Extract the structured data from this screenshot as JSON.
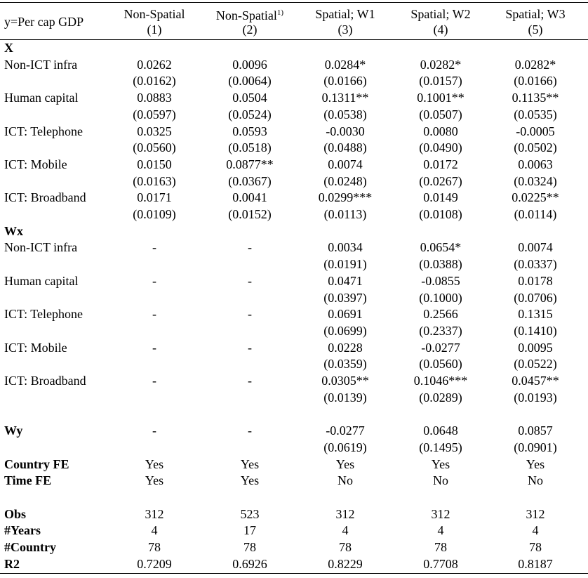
{
  "header": {
    "stub": "y=Per cap GDP",
    "columns": [
      {
        "title": "Non-Spatial",
        "number": "(1)"
      },
      {
        "title": "Non-Spatial",
        "note": "1)",
        "number": "(2)"
      },
      {
        "title": "Spatial; W1",
        "number": "(3)"
      },
      {
        "title": "Spatial; W2",
        "number": "(4)"
      },
      {
        "title": "Spatial; W3",
        "number": "(5)"
      }
    ]
  },
  "sections": [
    {
      "title": "X",
      "rows": [
        {
          "label": "Non-ICT infra",
          "values": [
            "0.0262",
            "0.0096",
            "0.0284*",
            "0.0282*",
            "0.0282*"
          ],
          "se": [
            "(0.0162)",
            "(0.0064)",
            "(0.0166)",
            "(0.0157)",
            "(0.0166)"
          ]
        },
        {
          "label": "Human capital",
          "values": [
            "0.0883",
            "0.0504",
            "0.1311**",
            "0.1001**",
            "0.1135**"
          ],
          "se": [
            "(0.0597)",
            "(0.0524)",
            "(0.0538)",
            "(0.0507)",
            "(0.0535)"
          ]
        },
        {
          "label": "ICT: Telephone",
          "values": [
            "0.0325",
            "0.0593",
            "-0.0030",
            "0.0080",
            "-0.0005"
          ],
          "se": [
            "(0.0560)",
            "(0.0518)",
            "(0.0488)",
            "(0.0490)",
            "(0.0502)"
          ]
        },
        {
          "label": "ICT: Mobile",
          "values": [
            "0.0150",
            "0.0877**",
            "0.0074",
            "0.0172",
            "0.0063"
          ],
          "se": [
            "(0.0163)",
            "(0.0367)",
            "(0.0248)",
            "(0.0267)",
            "(0.0324)"
          ]
        },
        {
          "label": "ICT: Broadband",
          "values": [
            "0.0171",
            "0.0041",
            "0.0299***",
            "0.0149",
            "0.0225**"
          ],
          "se": [
            "(0.0109)",
            "(0.0152)",
            "(0.0113)",
            "(0.0108)",
            "(0.0114)"
          ]
        }
      ]
    },
    {
      "title": "Wx",
      "rows": [
        {
          "label": "Non-ICT infra",
          "values": [
            "-",
            "-",
            "0.0034",
            "0.0654*",
            "0.0074"
          ],
          "se": [
            null,
            null,
            "(0.0191)",
            "(0.0388)",
            "(0.0337)"
          ]
        },
        {
          "label": "Human capital",
          "values": [
            "-",
            "-",
            "0.0471",
            "-0.0855",
            "0.0178"
          ],
          "se": [
            null,
            null,
            "(0.0397)",
            "(0.1000)",
            "(0.0706)"
          ]
        },
        {
          "label": "ICT: Telephone",
          "values": [
            "-",
            "-",
            "0.0691",
            "0.2566",
            "0.1315"
          ],
          "se": [
            null,
            null,
            "(0.0699)",
            "(0.2337)",
            "(0.1410)"
          ]
        },
        {
          "label": "ICT: Mobile",
          "values": [
            "-",
            "-",
            "0.0228",
            "-0.0277",
            "0.0095"
          ],
          "se": [
            null,
            null,
            "(0.0359)",
            "(0.0560)",
            "(0.0522)"
          ]
        },
        {
          "label": "ICT: Broadband",
          "values": [
            "-",
            "-",
            "0.0305**",
            "0.1046***",
            "0.0457**"
          ],
          "se": [
            null,
            null,
            "(0.0139)",
            "(0.0289)",
            "(0.0193)"
          ]
        }
      ]
    }
  ],
  "wy": {
    "label": "Wy",
    "values": [
      "-",
      "-",
      "-0.0277",
      "0.0648",
      "0.0857"
    ],
    "se": [
      null,
      null,
      "(0.0619)",
      "(0.1495)",
      "(0.0901)"
    ]
  },
  "fixed_effects": [
    {
      "label": "Country FE",
      "values": [
        "Yes",
        "Yes",
        "Yes",
        "Yes",
        "Yes"
      ]
    },
    {
      "label": "Time FE",
      "values": [
        "Yes",
        "Yes",
        "No",
        "No",
        "No"
      ]
    }
  ],
  "statistics": [
    {
      "label": "Obs",
      "values": [
        "312",
        "523",
        "312",
        "312",
        "312"
      ]
    },
    {
      "label": "#Years",
      "values": [
        "4",
        "17",
        "4",
        "4",
        "4"
      ]
    },
    {
      "label": "#Country",
      "values": [
        "78",
        "78",
        "78",
        "78",
        "78"
      ]
    },
    {
      "label": "R2",
      "values": [
        "0.7209",
        "0.6926",
        "0.8229",
        "0.7708",
        "0.8187"
      ]
    }
  ]
}
